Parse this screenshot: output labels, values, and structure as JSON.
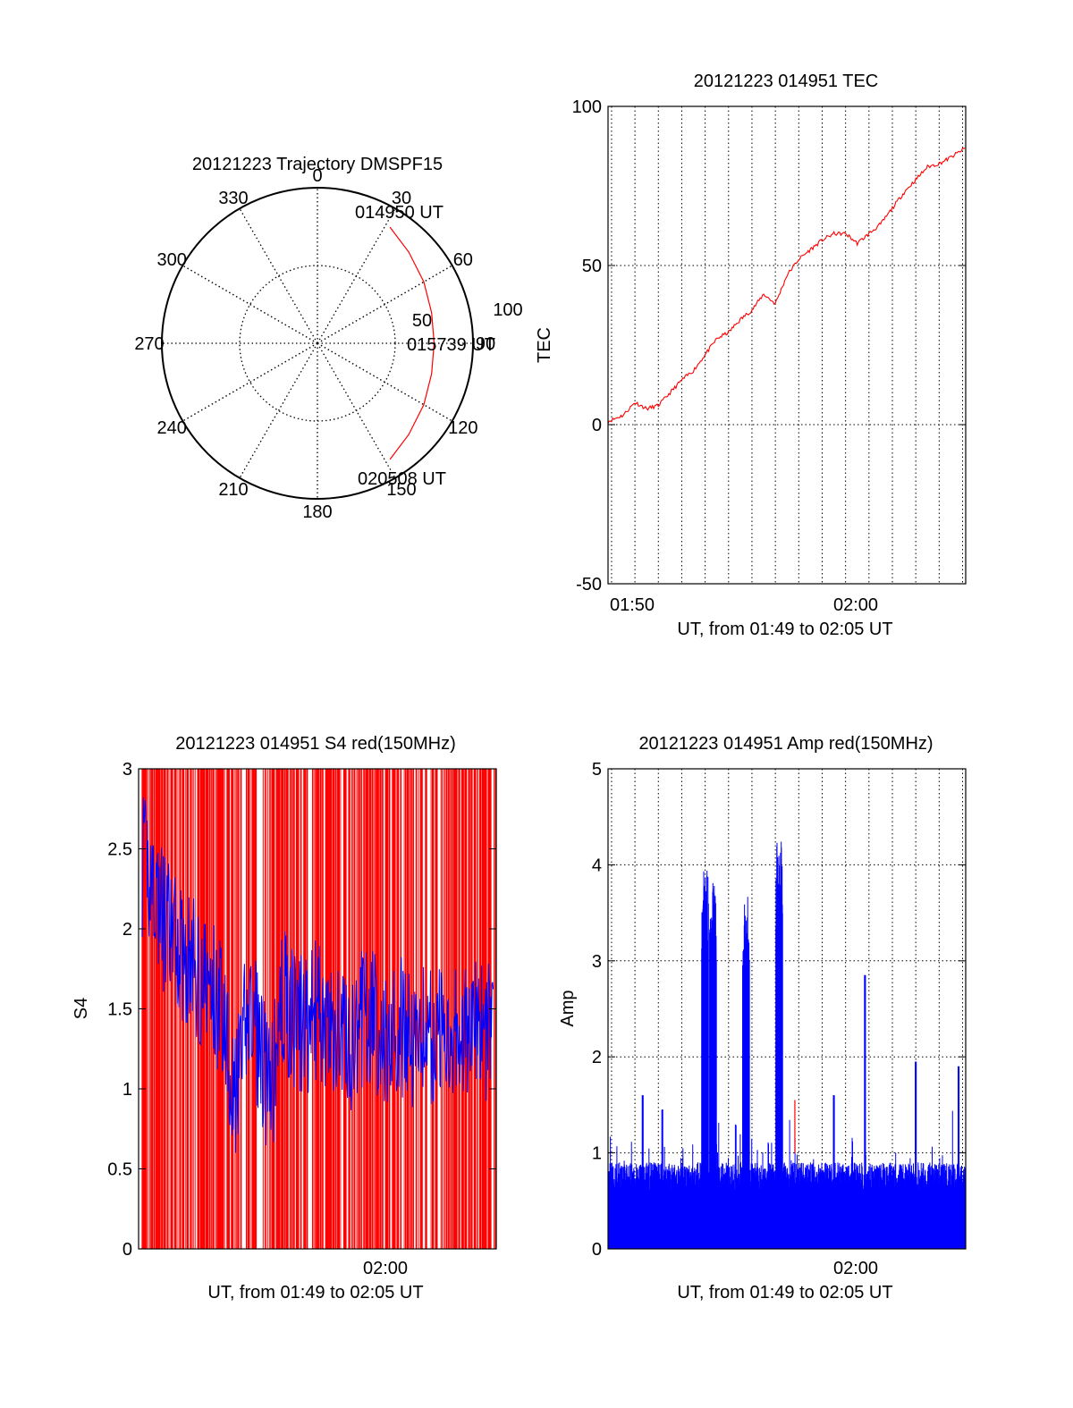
{
  "colors": {
    "primary": "#ff0000",
    "secondary": "#0000ff",
    "axis": "#000000",
    "background": "#ffffff"
  },
  "chart_data": [
    {
      "id": "polar",
      "type": "polar",
      "title": "20121223 Trajectory DMSPF15",
      "angle_labels": [
        {
          "angle": 0,
          "text": "0"
        },
        {
          "angle": 30,
          "text": "30"
        },
        {
          "angle": 60,
          "text": "60"
        },
        {
          "angle": 90,
          "text": "90"
        },
        {
          "angle": 120,
          "text": "120"
        },
        {
          "angle": 150,
          "text": "150"
        },
        {
          "angle": 180,
          "text": "180"
        },
        {
          "angle": 210,
          "text": "210"
        },
        {
          "angle": 240,
          "text": "240"
        },
        {
          "angle": 270,
          "text": "270"
        },
        {
          "angle": 300,
          "text": "300"
        },
        {
          "angle": 330,
          "text": "330"
        }
      ],
      "radius_labels": [
        "50",
        "100"
      ],
      "radial_grid": "dotted",
      "track": {
        "color": "red",
        "points": [
          [
            32,
            88
          ],
          [
            45,
            83
          ],
          [
            60,
            79
          ],
          [
            75,
            76
          ],
          [
            90,
            75
          ],
          [
            105,
            76
          ],
          [
            120,
            79
          ],
          [
            135,
            83
          ],
          [
            148,
            88
          ]
        ]
      },
      "time_labels": [
        {
          "text": "014950 UT",
          "role": "start"
        },
        {
          "text": "015739 UT",
          "role": "middle"
        },
        {
          "text": "020508 UT",
          "role": "end"
        }
      ]
    },
    {
      "id": "tec",
      "type": "line",
      "title": "20121223 014951 TEC",
      "xlabel": "UT, from 01:49 to 02:05 UT",
      "ylabel": "TEC",
      "x_range": [
        "01:49:51",
        "02:05:08"
      ],
      "ylim": [
        -50,
        100
      ],
      "yticks": [
        "-50",
        "0",
        "50",
        "100"
      ],
      "xticks": [
        "01:50",
        "02:00"
      ],
      "grid": "dotted, vertical every minute",
      "series": [
        {
          "color": "red",
          "x": [
            "01:49:51",
            "01:50:30",
            "01:51:00",
            "01:51:30",
            "01:52:00",
            "01:52:30",
            "01:53:00",
            "01:53:30",
            "01:54:00",
            "01:54:30",
            "01:55:00",
            "01:55:30",
            "01:56:00",
            "01:56:30",
            "01:57:00",
            "01:57:30",
            "01:58:00",
            "01:58:30",
            "01:59:00",
            "01:59:30",
            "02:00:00",
            "02:00:30",
            "02:01:00",
            "02:01:30",
            "02:02:00",
            "02:02:30",
            "02:03:00",
            "02:03:30",
            "02:04:00",
            "02:04:30",
            "02:05:08"
          ],
          "y": [
            1,
            3,
            7,
            5,
            6,
            10,
            14,
            17,
            22,
            27,
            29,
            33,
            36,
            41,
            38,
            47,
            52,
            55,
            58,
            60,
            60,
            57,
            60,
            63,
            68,
            73,
            77,
            81,
            82,
            84,
            87
          ]
        }
      ]
    },
    {
      "id": "s4",
      "type": "line",
      "title": "20121223 014951 S4 red(150MHz)",
      "xlabel": "UT, from 01:49 to 02:05 UT",
      "ylabel": "S4",
      "x_range": [
        "01:49:51",
        "02:05:08"
      ],
      "ylim": [
        0,
        3
      ],
      "yticks": [
        "0",
        "0.5",
        "1",
        "1.5",
        "2",
        "2.5",
        "3"
      ],
      "xticks": [
        "02:00"
      ],
      "series": [
        {
          "color": "red",
          "style": "dense spikes from 0 to 3"
        },
        {
          "color": "blue",
          "x": [
            "01:50:00",
            "01:50:30",
            "01:51:00",
            "01:51:30",
            "01:52:00",
            "01:52:30",
            "01:53:00",
            "01:53:30",
            "01:54:00",
            "01:54:30",
            "01:55:00",
            "01:55:30",
            "01:56:00",
            "01:56:30",
            "01:57:00",
            "01:57:30",
            "01:58:00",
            "01:58:30",
            "01:59:00",
            "01:59:30",
            "02:00:00",
            "02:00:30",
            "02:01:00",
            "02:01:30",
            "02:02:00",
            "02:02:30",
            "02:03:00",
            "02:03:30",
            "02:04:00",
            "02:04:30",
            "02:05:00"
          ],
          "y": [
            2.4,
            2.3,
            2.0,
            1.9,
            1.8,
            1.7,
            1.6,
            1.5,
            0.9,
            1.5,
            1.3,
            0.9,
            1.6,
            1.4,
            1.4,
            1.5,
            1.3,
            1.4,
            1.2,
            1.5,
            1.4,
            1.3,
            1.4,
            1.3,
            1.4,
            1.3,
            1.4,
            1.4,
            1.3,
            1.4,
            1.3
          ],
          "band": 0.45
        }
      ]
    },
    {
      "id": "amp",
      "type": "line",
      "title": "20121223 014951 Amp red(150MHz)",
      "xlabel": "UT, from 01:49 to 02:05 UT",
      "ylabel": "Amp",
      "x_range": [
        "01:49:51",
        "02:05:08"
      ],
      "ylim": [
        0,
        5
      ],
      "yticks": [
        "0",
        "1",
        "2",
        "3",
        "4",
        "5"
      ],
      "xticks": [
        "02:00"
      ],
      "grid": "dotted",
      "series": [
        {
          "color": "blue",
          "baseline": [
            0.6,
            0.9
          ],
          "peaks": [
            {
              "x": "01:54:00",
              "y": 4.05
            },
            {
              "x": "01:54:20",
              "y": 3.9
            },
            {
              "x": "01:55:45",
              "y": 3.75
            },
            {
              "x": "01:57:10",
              "y": 4.35
            },
            {
              "x": "02:00:50",
              "y": 2.85
            },
            {
              "x": "02:03:00",
              "y": 1.95
            },
            {
              "x": "02:04:50",
              "y": 1.9
            },
            {
              "x": "01:51:20",
              "y": 1.6
            },
            {
              "x": "01:52:10",
              "y": 1.45
            },
            {
              "x": "01:59:30",
              "y": 1.6
            }
          ]
        },
        {
          "color": "red",
          "peaks": [
            {
              "x": "01:57:50",
              "y": 1.55
            }
          ]
        }
      ]
    }
  ]
}
